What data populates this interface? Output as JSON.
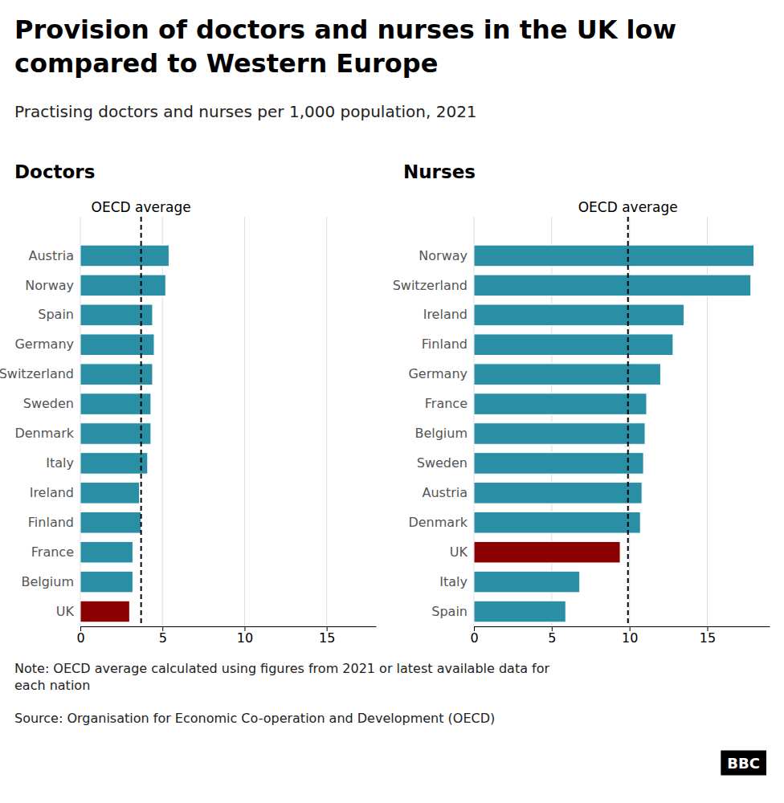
{
  "title": "Provision of doctors and nurses in the UK low\ncompared to Western Europe",
  "subtitle": "Practising doctors and nurses per 1,000 population, 2021",
  "note": "Note: OECD average calculated using figures from 2021 or latest available data for\neach nation",
  "source": "Source: Organisation for Economic Co-operation and Development (OECD)",
  "logo": "BBC",
  "chart_data": [
    {
      "type": "bar",
      "orientation": "horizontal",
      "title": "Doctors",
      "categories": [
        "Austria",
        "Norway",
        "Spain",
        "Germany",
        "Switzerland",
        "Sweden",
        "Denmark",
        "Italy",
        "Ireland",
        "Finland",
        "France",
        "Belgium",
        "UK"
      ],
      "values": [
        5.4,
        5.2,
        4.4,
        4.5,
        4.4,
        4.3,
        4.3,
        4.1,
        3.6,
        3.7,
        3.2,
        3.2,
        3.0
      ],
      "colors": [
        "#2a8fa5",
        "#2a8fa5",
        "#2a8fa5",
        "#2a8fa5",
        "#2a8fa5",
        "#2a8fa5",
        "#2a8fa5",
        "#2a8fa5",
        "#2a8fa5",
        "#2a8fa5",
        "#2a8fa5",
        "#2a8fa5",
        "#8B0000"
      ],
      "xlim": [
        0,
        18
      ],
      "xticks": [
        0,
        5,
        10,
        15
      ],
      "grid": true,
      "annotations": [
        {
          "text": "OECD average",
          "x": 3.7
        }
      ]
    },
    {
      "type": "bar",
      "orientation": "horizontal",
      "title": "Nurses",
      "categories": [
        "Norway",
        "Switzerland",
        "Ireland",
        "Finland",
        "Germany",
        "France",
        "Belgium",
        "Sweden",
        "Austria",
        "Denmark",
        "UK",
        "Italy",
        "Spain"
      ],
      "values": [
        18.0,
        17.8,
        13.5,
        12.8,
        12.0,
        11.1,
        11.0,
        10.9,
        10.8,
        10.7,
        9.4,
        6.8,
        5.9
      ],
      "colors": [
        "#2a8fa5",
        "#2a8fa5",
        "#2a8fa5",
        "#2a8fa5",
        "#2a8fa5",
        "#2a8fa5",
        "#2a8fa5",
        "#2a8fa5",
        "#2a8fa5",
        "#2a8fa5",
        "#8B0000",
        "#2a8fa5",
        "#2a8fa5"
      ],
      "xlim": [
        0,
        19
      ],
      "xticks": [
        0,
        5,
        10,
        15
      ],
      "grid": true,
      "annotations": [
        {
          "text": "OECD average",
          "x": 9.9
        }
      ]
    }
  ]
}
